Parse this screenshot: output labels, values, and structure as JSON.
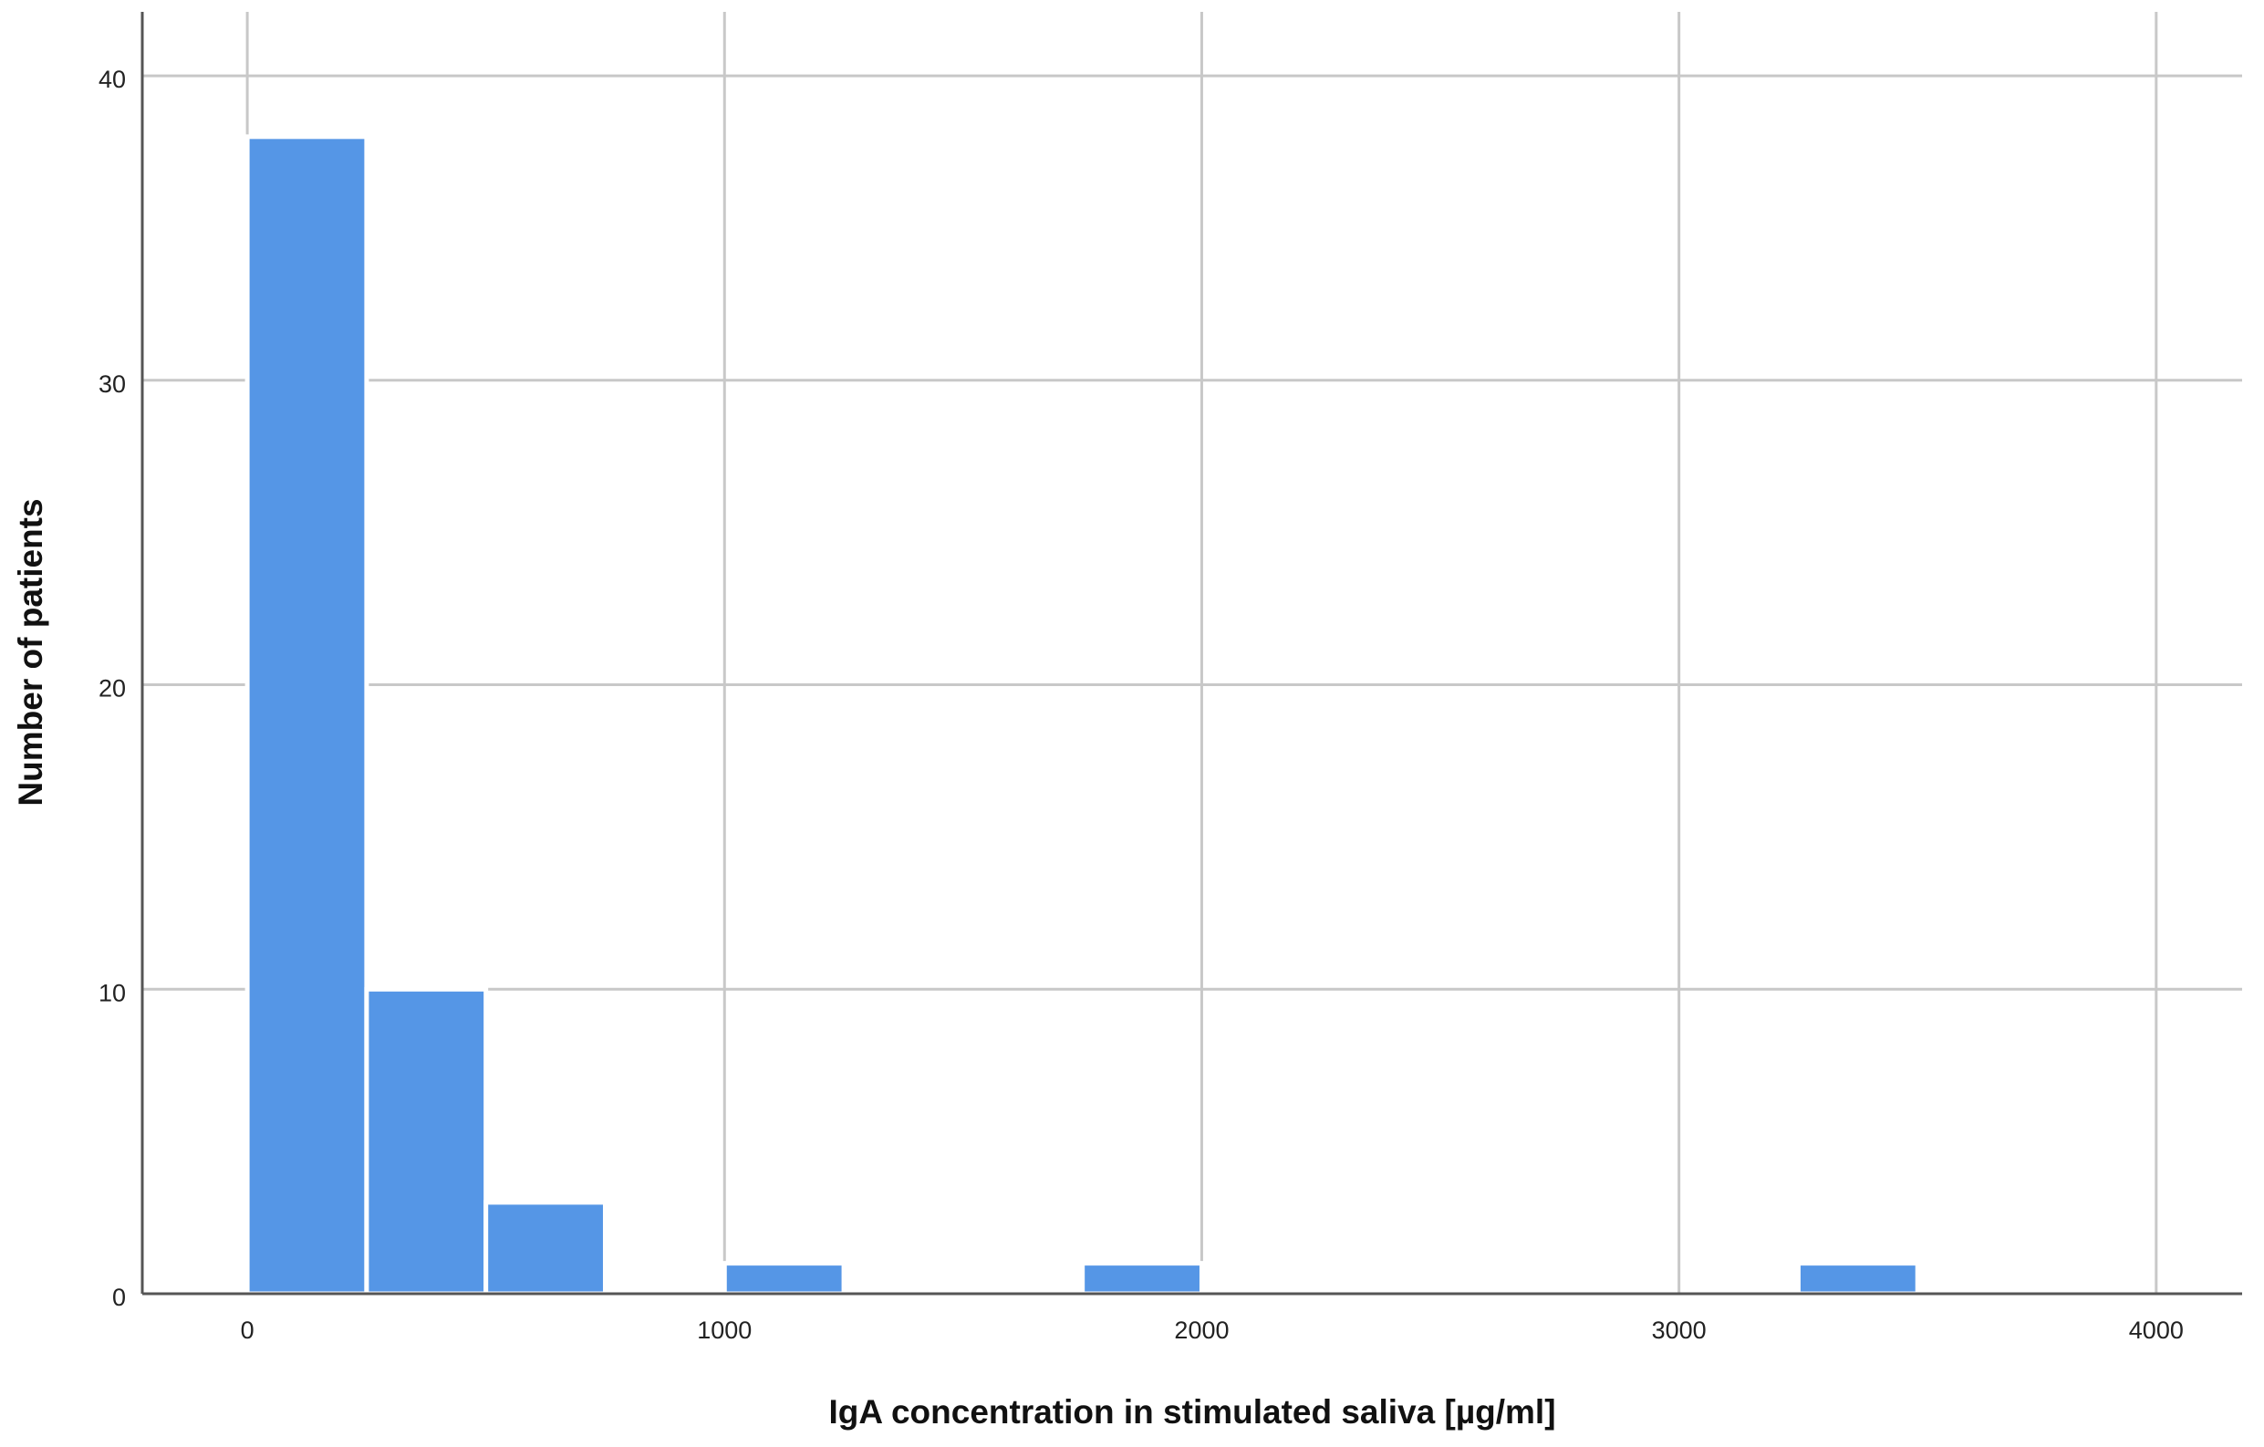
{
  "chart_data": {
    "type": "histogram",
    "xlabel": "IgA concentration in stimulated saliva [µg/ml]",
    "ylabel": "Number of patients",
    "bins": [
      0,
      250,
      500,
      750,
      1000,
      1250,
      1500,
      1750,
      2000,
      2250,
      2500,
      2750,
      3000,
      3250,
      3500
    ],
    "counts": [
      38,
      10,
      3,
      0,
      1,
      0,
      0,
      1,
      0,
      0,
      0,
      0,
      0,
      1
    ],
    "color": "#5596e6",
    "xlim": [
      -220,
      4180
    ],
    "xticks": [
      0,
      1000,
      2000,
      3000,
      4000
    ],
    "ylim": [
      0,
      42.1
    ],
    "yticks": [
      0,
      10,
      20,
      30,
      40
    ],
    "grid": true
  }
}
